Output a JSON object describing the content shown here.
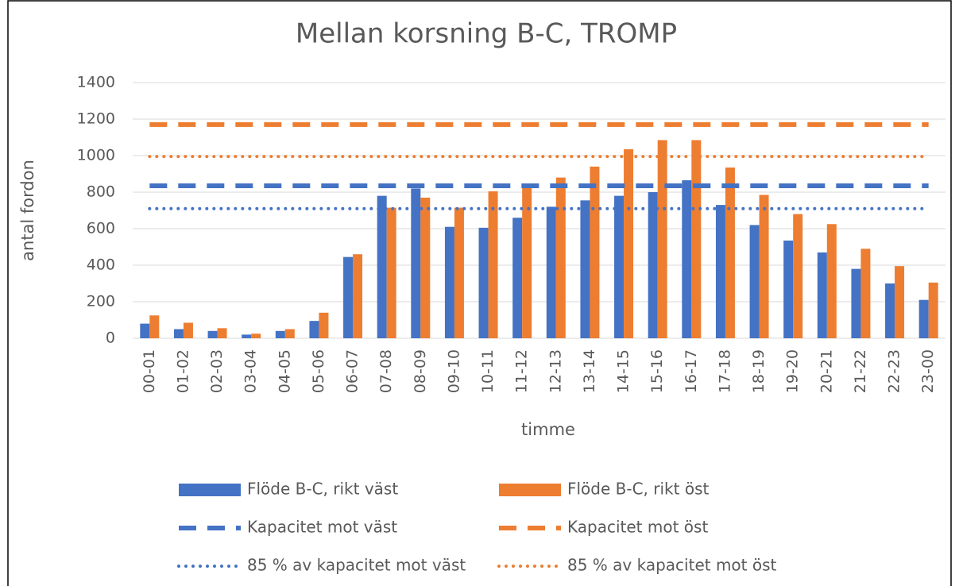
{
  "chart_data": {
    "type": "bar",
    "title": "Mellan korsning B-C, TROMP",
    "x_label": "timme",
    "y_label": "antal fordon",
    "categories": [
      "00-01",
      "01-02",
      "02-03",
      "03-04",
      "04-05",
      "05-06",
      "06-07",
      "07-08",
      "08-09",
      "09-10",
      "10-11",
      "11-12",
      "12-13",
      "13-14",
      "14-15",
      "15-16",
      "16-17",
      "17-18",
      "18-19",
      "19-20",
      "20-21",
      "21-22",
      "22-23",
      "23-00"
    ],
    "series": [
      {
        "name": "Flöde B-C, rikt väst",
        "color": "#4472c4",
        "style": "bar",
        "values": [
          80,
          50,
          40,
          20,
          40,
          95,
          445,
          780,
          820,
          610,
          605,
          660,
          720,
          755,
          780,
          800,
          865,
          730,
          620,
          535,
          470,
          380,
          300,
          210
        ]
      },
      {
        "name": "Flöde B-C, rikt öst",
        "color": "#ed7d31",
        "style": "bar",
        "values": [
          125,
          85,
          55,
          25,
          50,
          140,
          460,
          715,
          770,
          715,
          805,
          825,
          880,
          940,
          1035,
          1085,
          1085,
          935,
          785,
          680,
          625,
          490,
          395,
          305
        ]
      },
      {
        "name": "Kapacitet mot väst",
        "color": "#4472c4",
        "style": "dashed",
        "values": [
          835,
          835,
          835,
          835,
          835,
          835,
          835,
          835,
          835,
          835,
          835,
          835,
          835,
          835,
          835,
          835,
          835,
          835,
          835,
          835,
          835,
          835,
          835,
          835
        ]
      },
      {
        "name": "Kapacitet mot öst",
        "color": "#ed7d31",
        "style": "dashed",
        "values": [
          1170,
          1170,
          1170,
          1170,
          1170,
          1170,
          1170,
          1170,
          1170,
          1170,
          1170,
          1170,
          1170,
          1170,
          1170,
          1170,
          1170,
          1170,
          1170,
          1170,
          1170,
          1170,
          1170,
          1170
        ]
      },
      {
        "name": "85 % av kapacitet mot väst",
        "color": "#4472c4",
        "style": "dotted",
        "values": [
          710,
          710,
          710,
          710,
          710,
          710,
          710,
          710,
          710,
          710,
          710,
          710,
          710,
          710,
          710,
          710,
          710,
          710,
          710,
          710,
          710,
          710,
          710,
          710
        ]
      },
      {
        "name": "85 % av kapacitet mot öst",
        "color": "#ed7d31",
        "style": "dotted",
        "values": [
          995,
          995,
          995,
          995,
          995,
          995,
          995,
          995,
          995,
          995,
          995,
          995,
          995,
          995,
          995,
          995,
          995,
          995,
          995,
          995,
          995,
          995,
          995,
          995
        ]
      }
    ],
    "ylim": [
      0,
      1400
    ],
    "yticks": [
      0,
      200,
      400,
      600,
      800,
      1000,
      1200,
      1400
    ],
    "grid": true
  }
}
